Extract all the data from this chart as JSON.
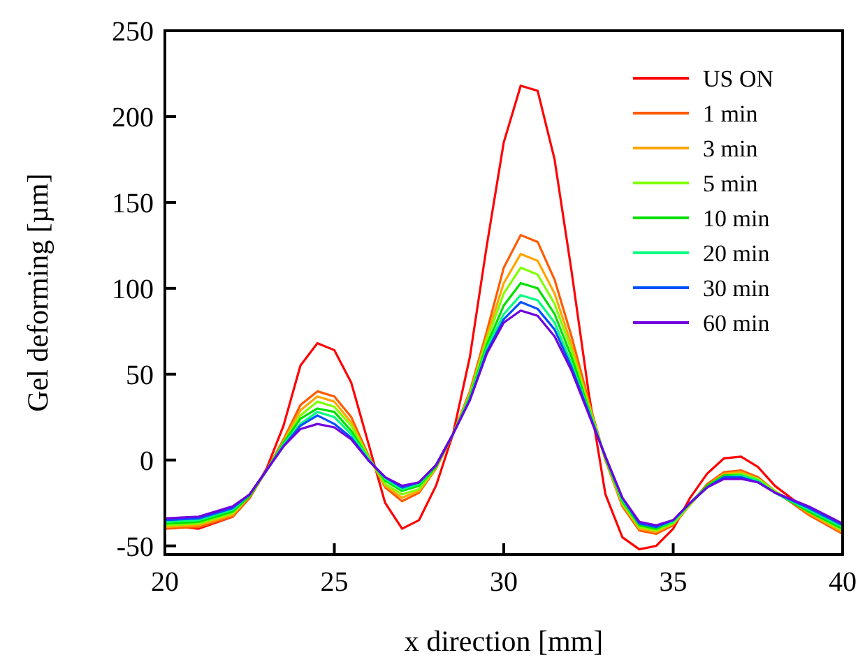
{
  "chart_data": {
    "type": "line",
    "xlabel": "x direction [mm]",
    "ylabel": "Gel deforming [µm]",
    "xlim": [
      20,
      40
    ],
    "xticks": [
      20,
      25,
      30,
      35,
      40
    ],
    "ylim": [
      -55,
      250
    ],
    "yticks": [
      -50,
      0,
      50,
      100,
      150,
      200,
      250
    ],
    "grid": false,
    "legend": "top right",
    "line_style": "solid",
    "marker": "none",
    "x": [
      20,
      21,
      22,
      22.5,
      23,
      23.5,
      24,
      24.5,
      25,
      25.5,
      26,
      26.5,
      27,
      27.5,
      28,
      28.5,
      29,
      29.5,
      30,
      30.5,
      31,
      31.5,
      32,
      32.5,
      33,
      33.5,
      34,
      34.5,
      35,
      35.5,
      36,
      36.5,
      37,
      37.5,
      38,
      39,
      40
    ],
    "series": [
      {
        "name": "US ON",
        "color": "#ff0000",
        "values": [
          -38,
          -40,
          -33,
          -22,
          -5,
          20,
          55,
          68,
          64,
          45,
          10,
          -25,
          -40,
          -35,
          -15,
          15,
          60,
          125,
          185,
          218,
          215,
          175,
          110,
          40,
          -20,
          -45,
          -52,
          -50,
          -40,
          -22,
          -8,
          1,
          2,
          -4,
          -15,
          -30,
          -42
        ]
      },
      {
        "name": "1 min",
        "color": "#ff5a00",
        "values": [
          -40,
          -39,
          -33,
          -22,
          -6,
          12,
          32,
          40,
          37,
          25,
          3,
          -16,
          -24,
          -19,
          -5,
          15,
          40,
          75,
          112,
          131,
          127,
          105,
          72,
          35,
          0,
          -27,
          -41,
          -43,
          -38,
          -26,
          -14,
          -7,
          -6,
          -10,
          -18,
          -32,
          -43
        ]
      },
      {
        "name": "3 min",
        "color": "#ffa500",
        "values": [
          -39,
          -38,
          -32,
          -21,
          -6,
          11,
          29,
          37,
          34,
          22,
          2,
          -15,
          -22,
          -18,
          -5,
          15,
          39,
          72,
          103,
          120,
          116,
          97,
          67,
          33,
          0,
          -26,
          -40,
          -42,
          -37,
          -26,
          -15,
          -8,
          -7,
          -11,
          -18,
          -31,
          -42
        ]
      },
      {
        "name": "5 min",
        "color": "#80ff00",
        "values": [
          -38,
          -37,
          -31,
          -21,
          -6,
          10,
          26,
          34,
          31,
          20,
          2,
          -14,
          -20,
          -17,
          -4,
          15,
          38,
          70,
          97,
          112,
          108,
          91,
          64,
          32,
          1,
          -25,
          -39,
          -41,
          -37,
          -26,
          -15,
          -9,
          -8,
          -11,
          -18,
          -30,
          -41
        ]
      },
      {
        "name": "10 min",
        "color": "#00e000",
        "values": [
          -37,
          -36,
          -30,
          -21,
          -6,
          10,
          24,
          30,
          28,
          17,
          1,
          -12,
          -18,
          -15,
          -4,
          15,
          37,
          67,
          90,
          103,
          100,
          85,
          60,
          30,
          1,
          -24,
          -38,
          -40,
          -36,
          -25,
          -15,
          -9,
          -9,
          -12,
          -19,
          -30,
          -40
        ]
      },
      {
        "name": "20 min",
        "color": "#00ff80",
        "values": [
          -36,
          -35,
          -29,
          -20,
          -6,
          9,
          21,
          28,
          25,
          15,
          1,
          -11,
          -17,
          -14,
          -3,
          15,
          36,
          65,
          85,
          96,
          93,
          80,
          56,
          29,
          2,
          -23,
          -37,
          -39,
          -36,
          -25,
          -16,
          -10,
          -9,
          -12,
          -19,
          -29,
          -39
        ]
      },
      {
        "name": "30 min",
        "color": "#0050ff",
        "values": [
          -35,
          -34,
          -28,
          -20,
          -6,
          8,
          20,
          26,
          21,
          13,
          0,
          -10,
          -16,
          -13,
          -3,
          15,
          35,
          63,
          82,
          92,
          88,
          76,
          54,
          28,
          2,
          -22,
          -37,
          -39,
          -35,
          -25,
          -16,
          -10,
          -10,
          -13,
          -19,
          -28,
          -38
        ]
      },
      {
        "name": "60 min",
        "color": "#7000e0",
        "values": [
          -34,
          -33,
          -27,
          -20,
          -6,
          8,
          18,
          21,
          19,
          12,
          0,
          -10,
          -15,
          -13,
          -3,
          15,
          35,
          62,
          80,
          87,
          84,
          72,
          52,
          27,
          2,
          -22,
          -36,
          -38,
          -35,
          -25,
          -16,
          -11,
          -11,
          -13,
          -19,
          -27,
          -37
        ]
      }
    ]
  }
}
